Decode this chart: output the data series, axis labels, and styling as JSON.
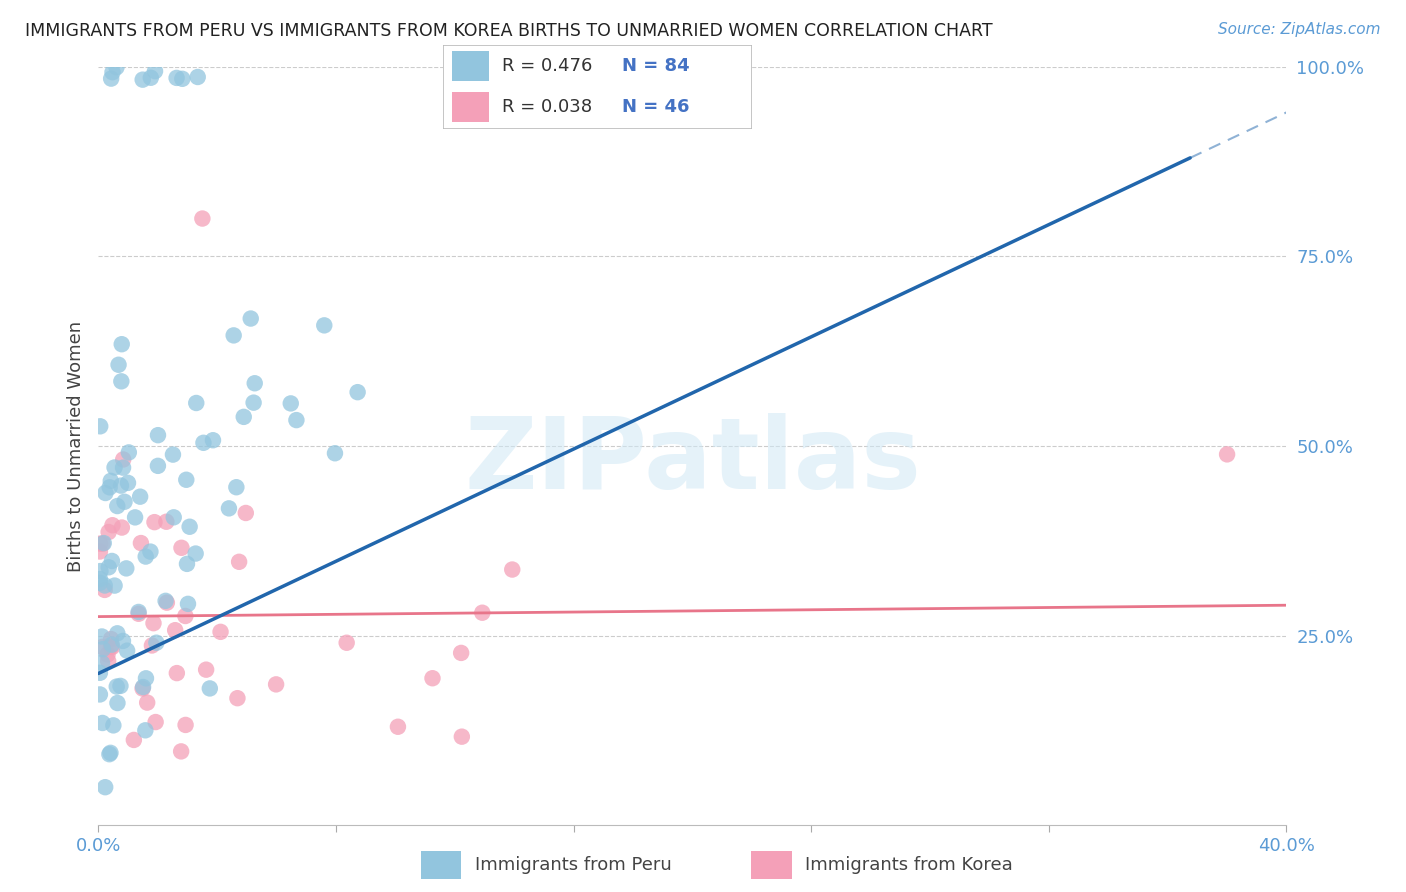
{
  "title": "IMMIGRANTS FROM PERU VS IMMIGRANTS FROM KOREA BIRTHS TO UNMARRIED WOMEN CORRELATION CHART",
  "source": "Source: ZipAtlas.com",
  "ylabel": "Births to Unmarried Women",
  "peru_R": 0.476,
  "peru_N": 84,
  "korea_R": 0.038,
  "korea_N": 46,
  "peru_color": "#92c5de",
  "korea_color": "#f4a0b8",
  "peru_trend_color": "#2166ac",
  "korea_trend_color": "#e8758a",
  "watermark": "ZIPatlas",
  "xlim": [
    0,
    40
  ],
  "ylim": [
    0,
    100
  ],
  "x_tick_labels": [
    "0.0%",
    "",
    "",
    "",
    "",
    "40.0%"
  ],
  "right_yticks": [
    100,
    75,
    50,
    25
  ],
  "right_yticklabels": [
    "100.0%",
    "75.0%",
    "50.0%",
    "25.0%"
  ],
  "legend_peru_text": "R = 0.476   N = 84",
  "legend_korea_text": "R = 0.038   N = 46",
  "bottom_legend_peru": "Immigrants from Peru",
  "bottom_legend_korea": "Immigrants from Korea",
  "peru_scatter_seed": 12345,
  "korea_scatter_seed": 67890,
  "peru_trend_x": [
    0.0,
    40.0
  ],
  "peru_trend_y_solid_start": 20.0,
  "peru_trend_slope": 1.85,
  "peru_dash_threshold_y": 88.0,
  "korea_trend_y_start": 27.5,
  "korea_trend_y_end": 29.0
}
